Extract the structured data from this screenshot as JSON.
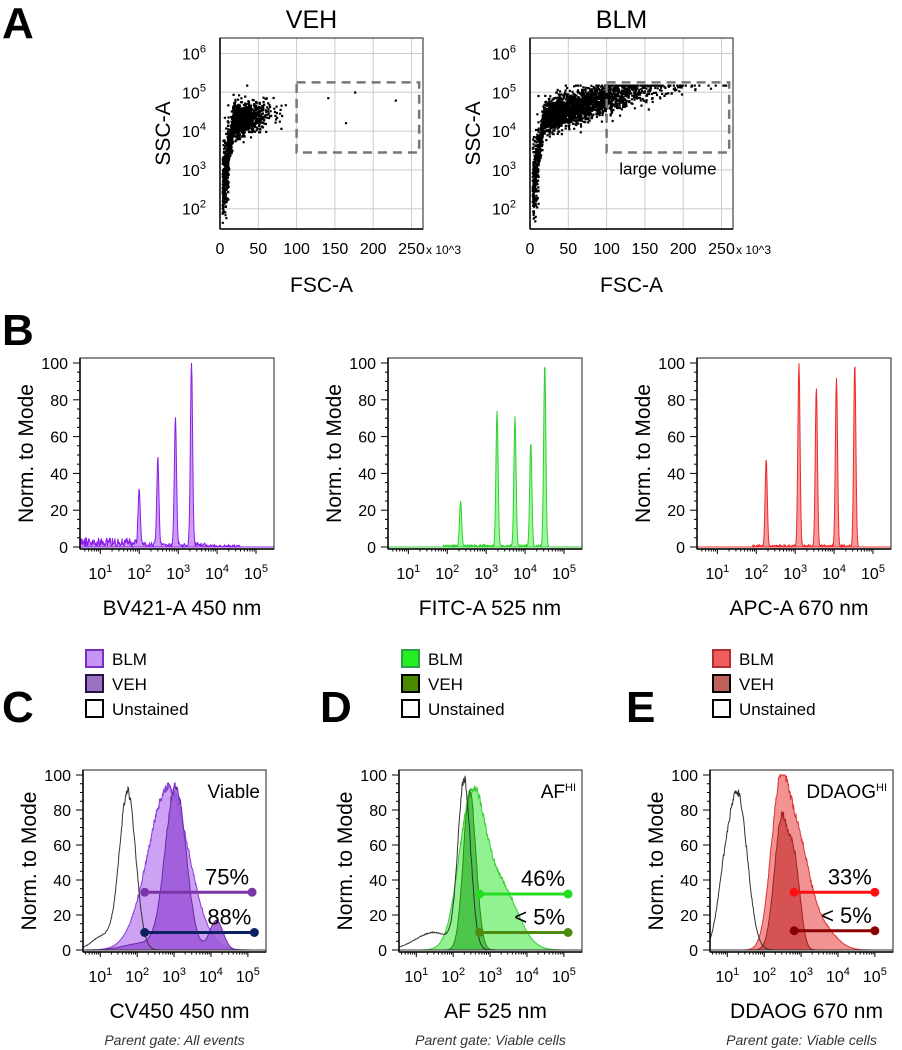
{
  "panel_letters": [
    "A",
    "B",
    "C",
    "D",
    "E"
  ],
  "chart_data": [
    {
      "id": "A1",
      "type": "scatter",
      "title": "VEH",
      "xlabel": "FSC-A",
      "ylabel": "SSC-A",
      "x_unit": "x 10^3",
      "xlim": [
        0,
        265
      ],
      "xticks": [
        0,
        50,
        100,
        150,
        200,
        250
      ],
      "yscale": "log",
      "ylim": [
        30,
        2500000
      ],
      "yticks": [
        100,
        1000,
        10000,
        100000,
        1000000
      ],
      "grid": true,
      "gate": {
        "x": [
          100,
          260
        ],
        "y": [
          2800,
          180000
        ]
      },
      "gate_label": "",
      "point_color": "#000000",
      "cluster": "veh"
    },
    {
      "id": "A2",
      "type": "scatter",
      "title": "BLM",
      "xlabel": "FSC-A",
      "ylabel": "SSC-A",
      "x_unit": "x 10^3",
      "xlim": [
        0,
        265
      ],
      "xticks": [
        0,
        50,
        100,
        150,
        200,
        250
      ],
      "yscale": "log",
      "ylim": [
        30,
        2500000
      ],
      "yticks": [
        100,
        1000,
        10000,
        100000,
        1000000
      ],
      "grid": true,
      "gate": {
        "x": [
          100,
          260
        ],
        "y": [
          2800,
          180000
        ]
      },
      "gate_label": "large volume",
      "point_color": "#000000",
      "cluster": "blm"
    },
    {
      "id": "B1",
      "type": "area",
      "xlabel": "BV421-A 450 nm",
      "ylabel": "Norm. to Mode",
      "xscale": "log",
      "xlim": [
        3,
        290000
      ],
      "ylim": [
        0,
        100
      ],
      "yticks": [
        0,
        20,
        40,
        60,
        80,
        100
      ],
      "xticks": [
        10,
        100,
        1000,
        10000,
        100000
      ],
      "series": [
        {
          "color": "#8b1ee8",
          "fill": "#c58af5",
          "peaks": [
            [
              100,
              30
            ],
            [
              300,
              47
            ],
            [
              850,
              69
            ],
            [
              2200,
              100
            ]
          ],
          "noise": true
        }
      ]
    },
    {
      "id": "B2",
      "type": "area",
      "xlabel": "FITC-A 525 nm",
      "ylabel": "Norm. to Mode",
      "xscale": "log",
      "xlim": [
        3,
        290000
      ],
      "ylim": [
        0,
        100
      ],
      "yticks": [
        0,
        20,
        40,
        60,
        80,
        100
      ],
      "xticks": [
        10,
        100,
        1000,
        10000,
        100000
      ],
      "series": [
        {
          "color": "#2fd12f",
          "fill": "#8ef58e",
          "peaks": [
            [
              220,
              25
            ],
            [
              1900,
              74
            ],
            [
              5500,
              71
            ],
            [
              14000,
              57
            ],
            [
              32000,
              100
            ]
          ]
        }
      ]
    },
    {
      "id": "B3",
      "type": "area",
      "xlabel": "APC-A 670 nm",
      "ylabel": "Norm. to Mode",
      "xscale": "log",
      "xlim": [
        3,
        290000
      ],
      "ylim": [
        0,
        100
      ],
      "yticks": [
        0,
        20,
        40,
        60,
        80,
        100
      ],
      "xticks": [
        10,
        100,
        1000,
        10000,
        100000
      ],
      "series": [
        {
          "color": "#f02828",
          "fill": "#f58a8a",
          "peaks": [
            [
              180,
              48
            ],
            [
              1250,
              100
            ],
            [
              3500,
              87
            ],
            [
              11500,
              92
            ],
            [
              34000,
              100
            ]
          ]
        }
      ]
    },
    {
      "id": "C",
      "type": "area",
      "xlabel": "CV450 450 nm",
      "ylabel": "Norm. to Mode",
      "xscale": "log",
      "xlim": [
        3.4,
        310000
      ],
      "ylim": [
        0,
        100
      ],
      "yticks": [
        0,
        20,
        40,
        60,
        80,
        100
      ],
      "xticks": [
        10,
        100,
        1000,
        10000,
        100000
      ],
      "annotation": "Viable",
      "annotation_sup": "",
      "footnote": "Parent gate: All events",
      "legend": [
        {
          "name": "BLM",
          "fill": "#c794f5",
          "edge": "#7b2fc0"
        },
        {
          "name": "VEH",
          "fill": "#9a72c4",
          "edge": "#2a1040"
        },
        {
          "name": "Unstained",
          "fill": "#ffffff",
          "edge": "#000000"
        }
      ],
      "series": [
        {
          "name": "BLM",
          "color": "#8a3ad8",
          "fill": "#c490f2",
          "peaks": [
            [
              700,
              93,
              0.55
            ]
          ]
        },
        {
          "name": "VEH",
          "color": "#6a2aa8",
          "fill": "#9a55d8",
          "peaks": [
            [
              1100,
              93,
              0.28
            ],
            [
              14000,
              17,
              0.18
            ],
            [
              150,
              4,
              0.5
            ]
          ]
        },
        {
          "name": "Unstained",
          "color": "#333333",
          "fill": "none",
          "peaks": [
            [
              55,
              90,
              0.22
            ],
            [
              12,
              8,
              0.3
            ]
          ]
        }
      ],
      "gates": [
        {
          "label": "75%",
          "x": [
            160,
            130000
          ],
          "y": 33,
          "color": "#7a35a8"
        },
        {
          "label": "88%",
          "x": [
            160,
            150000
          ],
          "y": 10,
          "color": "#0a2060"
        }
      ]
    },
    {
      "id": "D",
      "type": "area",
      "xlabel": "AF 525 nm",
      "ylabel": "Norm. to Mode",
      "xscale": "log",
      "xlim": [
        3.4,
        310000
      ],
      "ylim": [
        0,
        100
      ],
      "yticks": [
        0,
        20,
        40,
        60,
        80,
        100
      ],
      "xticks": [
        10,
        100,
        1000,
        10000,
        100000
      ],
      "annotation": "AF",
      "annotation_sup": "HI",
      "footnote": "Parent gate: Viable cells",
      "legend": [
        {
          "name": "BLM",
          "fill": "#22ee22",
          "edge": "#2aa04a"
        },
        {
          "name": "VEH",
          "fill": "#4a8a00",
          "edge": "#000000"
        },
        {
          "name": "Unstained",
          "fill": "#ffffff",
          "edge": "#000000"
        }
      ],
      "series": [
        {
          "name": "BLM",
          "color": "#33cc33",
          "fill": "#7ff07f",
          "peaks": [
            [
              320,
              85,
              0.35
            ],
            [
              2000,
              35,
              0.45
            ]
          ]
        },
        {
          "name": "VEH",
          "color": "#2c8a10",
          "fill": "#3fbf3f",
          "peaks": [
            [
              280,
              90,
              0.17
            ]
          ]
        },
        {
          "name": "Unstained",
          "color": "#333333",
          "fill": "none",
          "peaks": [
            [
              200,
              95,
              0.17
            ],
            [
              30,
              10,
              0.5
            ]
          ]
        }
      ],
      "gates": [
        {
          "label": "46%",
          "x": [
            520,
            130000
          ],
          "y": 32,
          "color": "#22dd22"
        },
        {
          "label": "< 5%",
          "x": [
            520,
            130000
          ],
          "y": 10,
          "color": "#4f8a10"
        }
      ]
    },
    {
      "id": "E",
      "type": "area",
      "xlabel": "DDAOG 670 nm",
      "ylabel": "Norm. to Mode",
      "xscale": "log",
      "xlim": [
        3.4,
        310000
      ],
      "ylim": [
        0,
        100
      ],
      "yticks": [
        0,
        20,
        40,
        60,
        80,
        100
      ],
      "xticks": [
        10,
        100,
        1000,
        10000,
        100000
      ],
      "annotation": "DDAOG",
      "annotation_sup": "HI",
      "footnote": "Parent gate: Viable cells",
      "legend": [
        {
          "name": "BLM",
          "fill": "#f25c5c",
          "edge": "#b03030"
        },
        {
          "name": "VEH",
          "fill": "#c0605a",
          "edge": "#000000"
        },
        {
          "name": "Unstained",
          "fill": "#ffffff",
          "edge": "#000000"
        }
      ],
      "series": [
        {
          "name": "BLM",
          "color": "#e03030",
          "fill": "#f08080",
          "peaks": [
            [
              260,
              83,
              0.25
            ],
            [
              800,
              55,
              0.3
            ],
            [
              3000,
              15,
              0.4
            ]
          ]
        },
        {
          "name": "VEH",
          "color": "#a02020",
          "fill": "#d04848",
          "peaks": [
            [
              300,
              75,
              0.2
            ],
            [
              700,
              40,
              0.15
            ]
          ]
        },
        {
          "name": "Unstained",
          "color": "#333333",
          "fill": "none",
          "peaks": [
            [
              20,
              85,
              0.25
            ],
            [
              8,
              30,
              0.2
            ]
          ]
        }
      ],
      "gates": [
        {
          "label": "33%",
          "x": [
            650,
            100000
          ],
          "y": 33,
          "color": "#ff1010"
        },
        {
          "label": "< 5%",
          "x": [
            650,
            100000
          ],
          "y": 11,
          "color": "#8b0000"
        }
      ]
    }
  ]
}
